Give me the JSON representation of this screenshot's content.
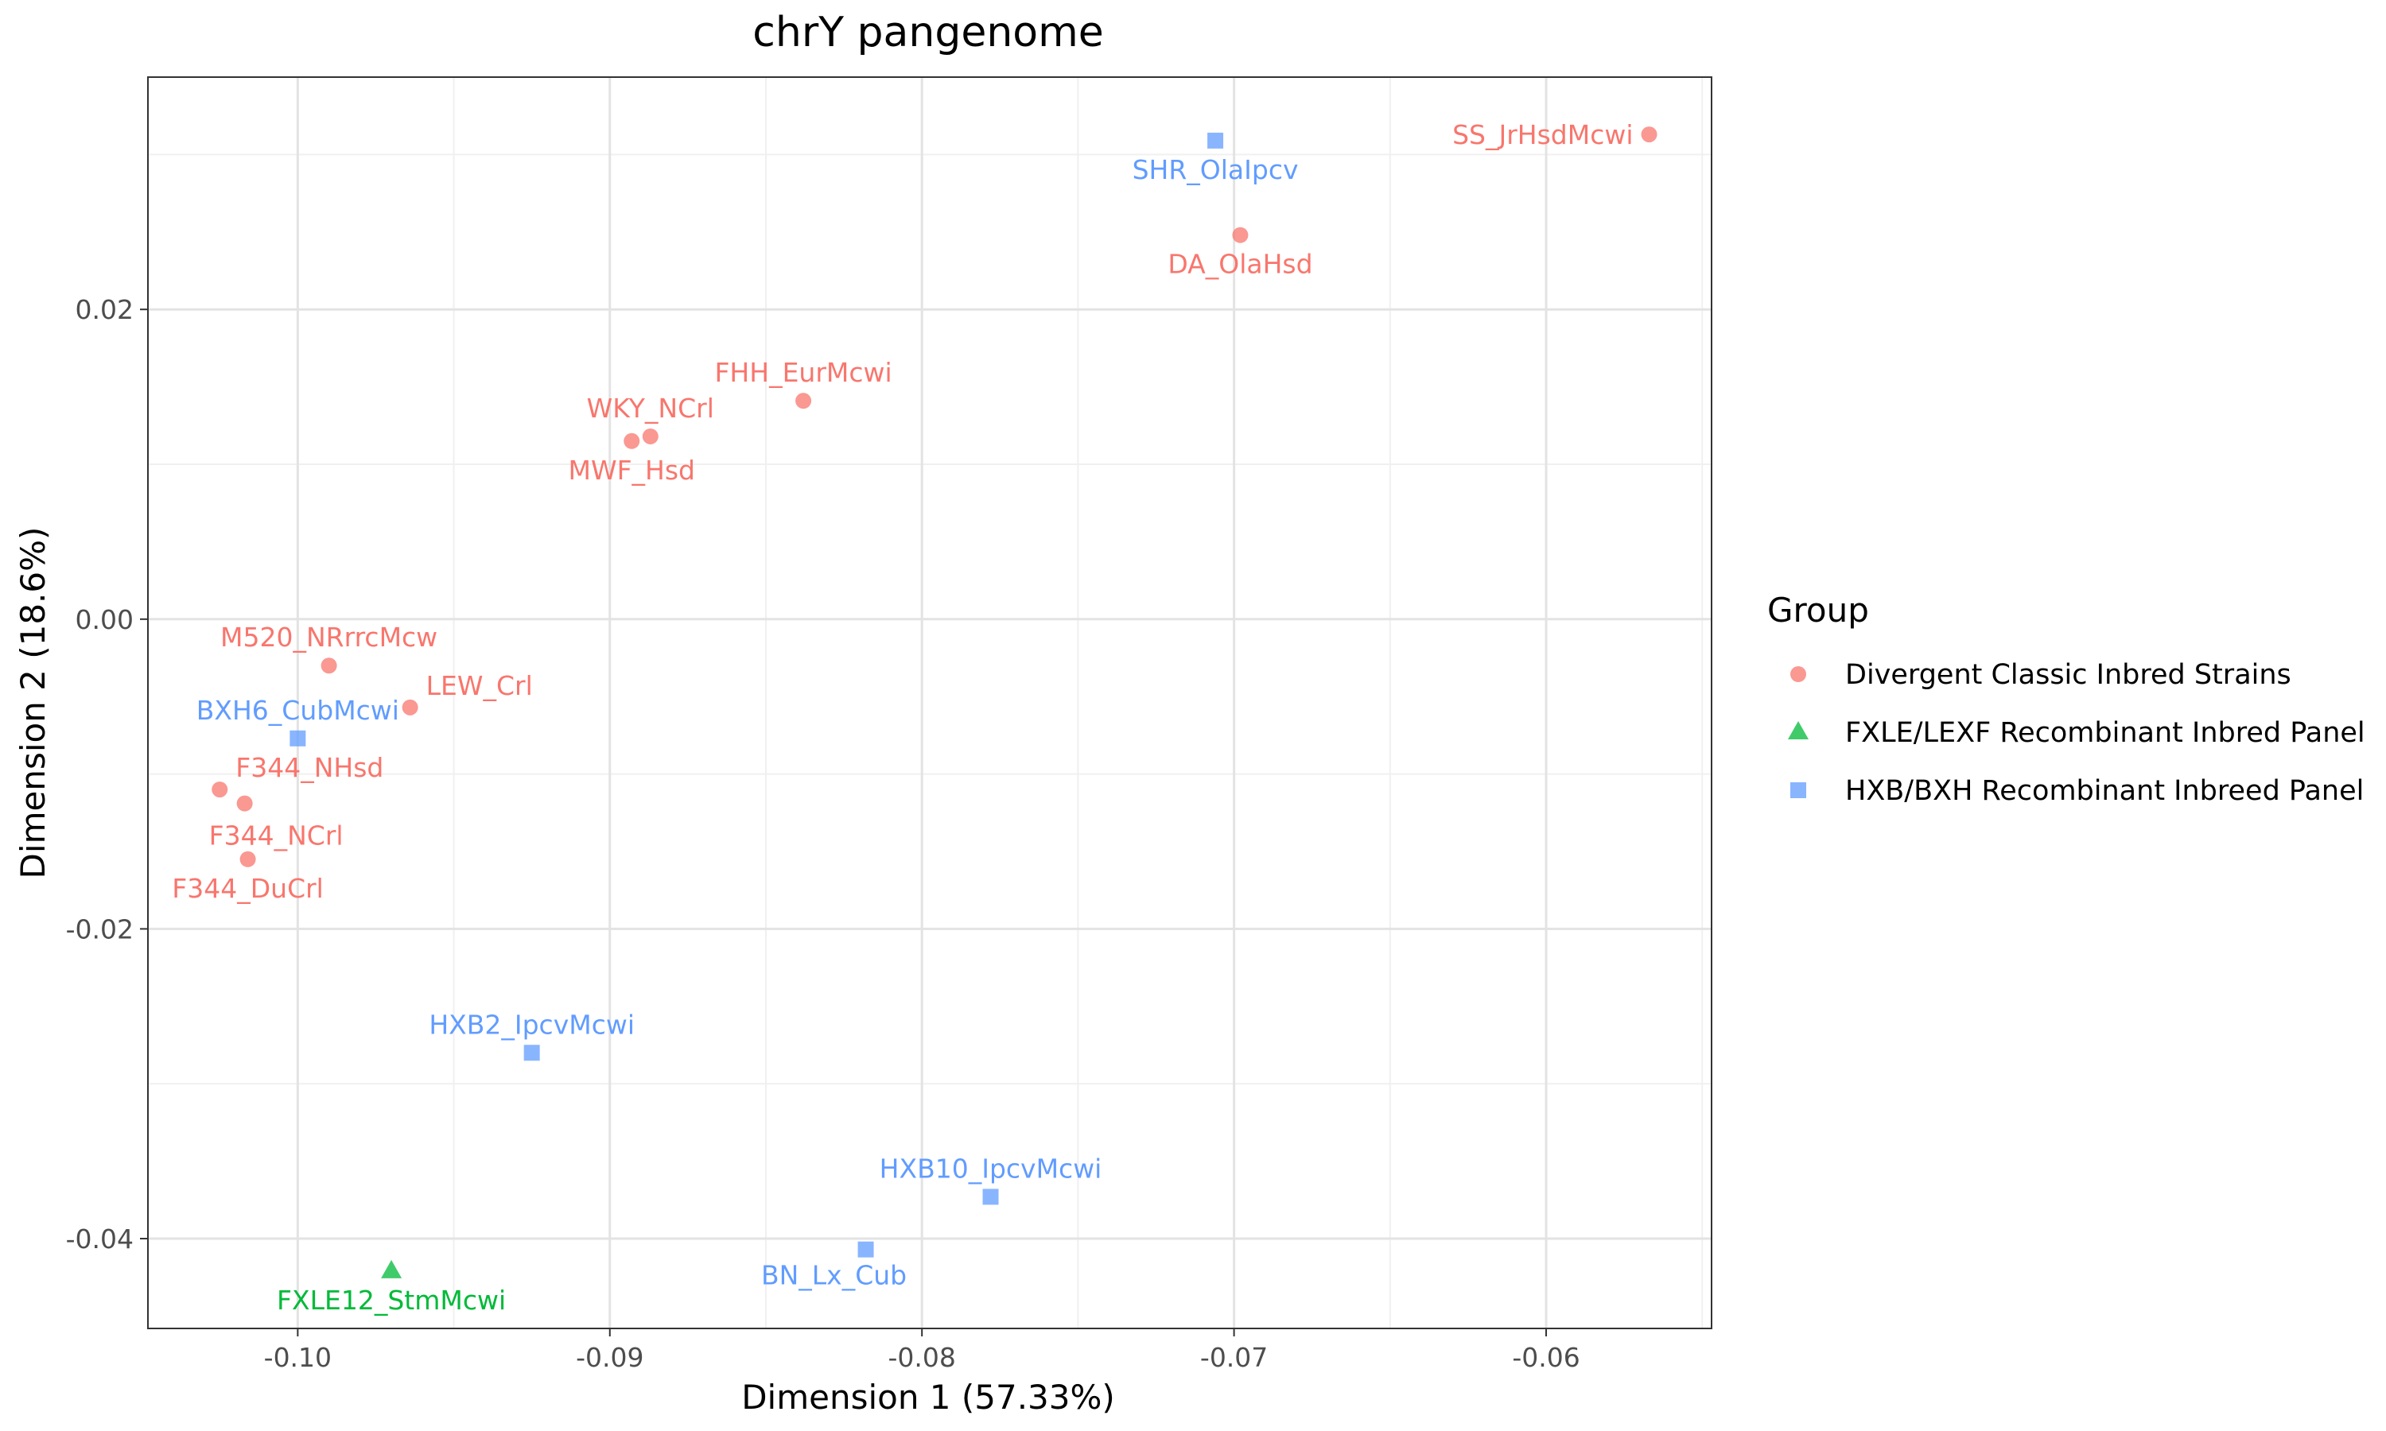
{
  "chart_data": {
    "type": "scatter",
    "title": "chrY pangenome",
    "xlabel": "Dimension 1 (57.33%)",
    "ylabel": "Dimension 2 (18.6%)",
    "xlim": [
      -0.1048,
      -0.0547
    ],
    "ylim": [
      -0.0458,
      0.035
    ],
    "x_ticks": [
      -0.1,
      -0.09,
      -0.08,
      -0.07,
      -0.06
    ],
    "x_tick_labels": [
      "-0.10",
      "-0.09",
      "-0.08",
      "-0.07",
      "-0.06"
    ],
    "y_ticks": [
      -0.04,
      -0.02,
      0.0,
      0.02
    ],
    "y_tick_labels": [
      "-0.04",
      "-0.02",
      "0.00",
      "0.02"
    ],
    "grid": true,
    "legend": {
      "title": "Group",
      "position": "right",
      "entries": [
        {
          "name": "Divergent Classic Inbred Strains",
          "color": "#F8766D",
          "shape": "circle"
        },
        {
          "name": "FXLE/LEXF Recombinant Inbred Panel",
          "color": "#00BA38",
          "shape": "triangle"
        },
        {
          "name": "HXB/BXH Recombinant Inbreed Panel",
          "color": "#619CFF",
          "shape": "square"
        }
      ]
    },
    "points": [
      {
        "label": "SS_JrHsdMcwi",
        "group": 0,
        "x": -0.0567,
        "y": 0.0313,
        "label_pos": "left"
      },
      {
        "label": "DA_OlaHsd",
        "group": 0,
        "x": -0.0698,
        "y": 0.0248,
        "label_pos": "below"
      },
      {
        "label": "FHH_EurMcwi",
        "group": 0,
        "x": -0.0838,
        "y": 0.0141,
        "label_pos": "above"
      },
      {
        "label": "WKY_NCrl",
        "group": 0,
        "x": -0.0887,
        "y": 0.0118,
        "label_pos": "above"
      },
      {
        "label": "MWF_Hsd",
        "group": 0,
        "x": -0.0893,
        "y": 0.0115,
        "label_pos": "below"
      },
      {
        "label": "M520_NRrrcMcw",
        "group": 0,
        "x": -0.099,
        "y": -0.003,
        "label_pos": "above"
      },
      {
        "label": "LEW_Crl",
        "group": 0,
        "x": -0.0964,
        "y": -0.0057,
        "label_pos": "above-right"
      },
      {
        "label": "F344_NHsd",
        "group": 0,
        "x": -0.1025,
        "y": -0.011,
        "label_pos": "above-right"
      },
      {
        "label": "F344_NCrl",
        "group": 0,
        "x": -0.1017,
        "y": -0.0119,
        "label_pos": "below-right"
      },
      {
        "label": "F344_DuCrl",
        "group": 0,
        "x": -0.1016,
        "y": -0.0155,
        "label_pos": "below"
      },
      {
        "label": "SHR_OlaIpcv",
        "group": 2,
        "x": -0.0706,
        "y": 0.0309,
        "label_pos": "below"
      },
      {
        "label": "BXH6_CubMcwi",
        "group": 2,
        "x": -0.1,
        "y": -0.0077,
        "label_pos": "above"
      },
      {
        "label": "HXB2_IpcvMcwi",
        "group": 2,
        "x": -0.0925,
        "y": -0.028,
        "label_pos": "above"
      },
      {
        "label": "HXB10_IpcvMcwi",
        "group": 2,
        "x": -0.0778,
        "y": -0.0373,
        "label_pos": "above"
      },
      {
        "label": "BN_Lx_Cub",
        "group": 2,
        "x": -0.0818,
        "y": -0.0407,
        "label_pos": "below-left"
      },
      {
        "label": "FXLE12_StmMcwi",
        "group": 1,
        "x": -0.097,
        "y": -0.0421,
        "label_pos": "below"
      }
    ]
  }
}
